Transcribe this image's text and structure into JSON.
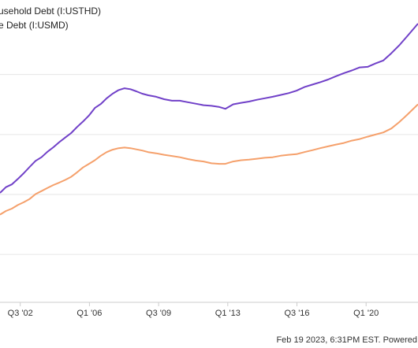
{
  "legend": {
    "series_1_label": "usehold Debt (I:USTHD)",
    "series_2_label": "e Debt (I:USMD)"
  },
  "footer": {
    "attribution": "Feb 19 2023, 6:31PM EST. Powered"
  },
  "colors": {
    "series_1": "#7040c8",
    "series_2": "#f5a06b",
    "grid": "#e6e6e6",
    "baseline": "#cccccc"
  },
  "chart_data": {
    "type": "line",
    "x_tick_labels": [
      "Q3 '02",
      "Q1 '06",
      "Q3 '09",
      "Q1 '13",
      "Q3 '16",
      "Q1 '20"
    ],
    "x_ticks": [
      2002.625,
      2006.125,
      2009.625,
      2013.125,
      2016.625,
      2020.125
    ],
    "x_range": [
      2001.6,
      2022.75
    ],
    "y_range": [
      0,
      1
    ],
    "grid": "horizontal",
    "y_gridlines": [
      0.1584,
      0.3568,
      0.5551,
      0.7535
    ],
    "series": [
      {
        "name": "usehold Debt (I:USTHD)",
        "color_key": "series_1",
        "x": [
          2001.6,
          2001.9,
          2002.2,
          2002.5,
          2002.8,
          2003.1,
          2003.4,
          2003.7,
          2004.0,
          2004.3,
          2004.6,
          2004.9,
          2005.2,
          2005.5,
          2005.8,
          2006.1,
          2006.4,
          2006.7,
          2007.0,
          2007.3,
          2007.6,
          2007.9,
          2008.2,
          2008.5,
          2008.8,
          2009.1,
          2009.5,
          2009.9,
          2010.3,
          2010.7,
          2011.1,
          2011.5,
          2011.9,
          2012.3,
          2012.7,
          2013.0,
          2013.4,
          2013.8,
          2014.2,
          2014.6,
          2015.0,
          2015.4,
          2015.8,
          2016.2,
          2016.6,
          2017.0,
          2017.4,
          2017.8,
          2018.2,
          2018.6,
          2019.0,
          2019.4,
          2019.8,
          2020.2,
          2020.6,
          2021.0,
          2021.4,
          2021.8,
          2022.2,
          2022.75
        ],
        "values": [
          0.362,
          0.381,
          0.39,
          0.408,
          0.427,
          0.448,
          0.468,
          0.48,
          0.498,
          0.513,
          0.53,
          0.545,
          0.56,
          0.58,
          0.598,
          0.618,
          0.643,
          0.656,
          0.675,
          0.69,
          0.702,
          0.708,
          0.705,
          0.698,
          0.69,
          0.685,
          0.68,
          0.672,
          0.667,
          0.667,
          0.662,
          0.657,
          0.652,
          0.65,
          0.646,
          0.64,
          0.655,
          0.66,
          0.664,
          0.67,
          0.675,
          0.68,
          0.686,
          0.692,
          0.7,
          0.712,
          0.72,
          0.728,
          0.737,
          0.748,
          0.758,
          0.767,
          0.777,
          0.779,
          0.79,
          0.8,
          0.824,
          0.85,
          0.88,
          0.922
        ]
      },
      {
        "name": "e Debt (I:USMD)",
        "color_key": "series_2",
        "x": [
          2001.6,
          2001.9,
          2002.2,
          2002.5,
          2002.8,
          2003.1,
          2003.4,
          2003.7,
          2004.0,
          2004.3,
          2004.6,
          2004.9,
          2005.2,
          2005.5,
          2005.8,
          2006.1,
          2006.4,
          2006.7,
          2007.0,
          2007.3,
          2007.6,
          2007.9,
          2008.2,
          2008.5,
          2008.8,
          2009.1,
          2009.5,
          2009.9,
          2010.3,
          2010.7,
          2011.1,
          2011.5,
          2011.9,
          2012.3,
          2012.7,
          2013.0,
          2013.4,
          2013.8,
          2014.2,
          2014.6,
          2015.0,
          2015.4,
          2015.8,
          2016.2,
          2016.6,
          2017.0,
          2017.4,
          2017.8,
          2018.2,
          2018.6,
          2019.0,
          2019.4,
          2019.8,
          2020.2,
          2020.6,
          2021.0,
          2021.4,
          2021.8,
          2022.2,
          2022.75
        ],
        "values": [
          0.29,
          0.302,
          0.31,
          0.322,
          0.331,
          0.342,
          0.358,
          0.368,
          0.378,
          0.388,
          0.396,
          0.405,
          0.415,
          0.43,
          0.446,
          0.458,
          0.47,
          0.485,
          0.497,
          0.505,
          0.51,
          0.512,
          0.51,
          0.506,
          0.502,
          0.497,
          0.493,
          0.488,
          0.484,
          0.48,
          0.474,
          0.469,
          0.466,
          0.46,
          0.458,
          0.458,
          0.466,
          0.47,
          0.472,
          0.475,
          0.478,
          0.48,
          0.485,
          0.488,
          0.49,
          0.497,
          0.503,
          0.51,
          0.516,
          0.522,
          0.527,
          0.535,
          0.54,
          0.548,
          0.555,
          0.562,
          0.575,
          0.596,
          0.62,
          0.655
        ]
      }
    ]
  }
}
